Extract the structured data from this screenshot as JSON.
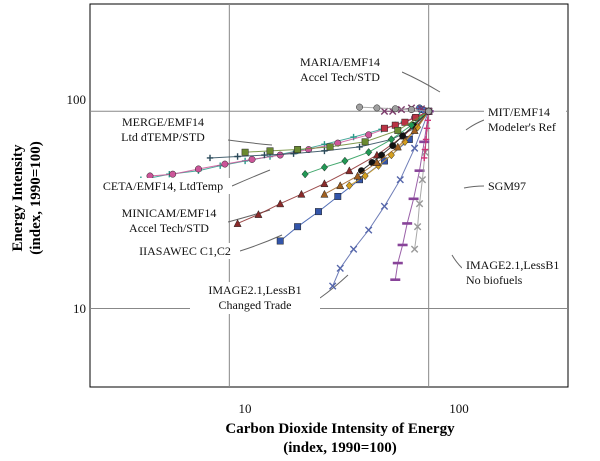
{
  "chart_data": {
    "type": "scatter",
    "xlabel": "Carbon Dioxide Intensity of Energy",
    "xlabel_sub": "(index, 1990=100)",
    "ylabel": "Energy Intensity",
    "ylabel_sub": "(index, 1990=100)",
    "x_scale": "log",
    "y_scale": "log",
    "xlim": [
      2,
      500
    ],
    "ylim": [
      4,
      350
    ],
    "x_ticks": [
      10,
      100
    ],
    "y_ticks": [
      10,
      100
    ],
    "x_tick_labels": [
      "10",
      "100"
    ],
    "y_tick_labels": [
      "10",
      "100"
    ],
    "grid": true,
    "annotations": [
      {
        "lines": [
          "MARIA/EMF14",
          "Accel Tech/STD"
        ]
      },
      {
        "lines": [
          "MERGE/EMF14",
          "Ltd dTEMP/STD"
        ]
      },
      {
        "lines": [
          "MIT/EMF14",
          "Modeler's Ref"
        ]
      },
      {
        "lines": [
          "CETA/EMF14, LtdTemp"
        ]
      },
      {
        "lines": [
          "SGM97"
        ]
      },
      {
        "lines": [
          "MINICAM/EMF14",
          "Accel Tech/STD"
        ]
      },
      {
        "lines": [
          "IIASAWEC C1,C2"
        ]
      },
      {
        "lines": [
          "IMAGE2.1,LessB1",
          "Changed Trade"
        ]
      },
      {
        "lines": [
          "IMAGE2.1,LessB1",
          "No biofuels"
        ]
      }
    ],
    "series": [
      {
        "color": "#2a9a8a",
        "marker": "plus",
        "values": [
          [
            2.7,
            44
          ],
          [
            3.6,
            45
          ],
          [
            5,
            48
          ],
          [
            7,
            50
          ],
          [
            9,
            53
          ],
          [
            12,
            56
          ],
          [
            16,
            59
          ],
          [
            22,
            63
          ],
          [
            30,
            68
          ],
          [
            42,
            74
          ],
          [
            58,
            81
          ],
          [
            75,
            88
          ],
          [
            90,
            95
          ],
          [
            100,
            100
          ]
        ]
      },
      {
        "color": "#cc5599",
        "marker": "circle",
        "values": [
          [
            4,
            47
          ],
          [
            5.2,
            48
          ],
          [
            7,
            51
          ],
          [
            9.5,
            54
          ],
          [
            13,
            57
          ],
          [
            18,
            60
          ],
          [
            25,
            64
          ],
          [
            35,
            69
          ],
          [
            50,
            76
          ],
          [
            68,
            85
          ],
          [
            85,
            93
          ],
          [
            100,
            100
          ]
        ]
      },
      {
        "color": "#2a4a5a",
        "marker": "plus",
        "values": [
          [
            8,
            58
          ],
          [
            11,
            59
          ],
          [
            15,
            60
          ],
          [
            21,
            61
          ],
          [
            30,
            63
          ],
          [
            45,
            66
          ],
          [
            65,
            72
          ],
          [
            85,
            82
          ],
          [
            100,
            100
          ]
        ]
      },
      {
        "color": "#8a2a2a",
        "marker": "triangle",
        "values": [
          [
            11,
            27
          ],
          [
            14,
            30
          ],
          [
            18,
            34
          ],
          [
            23,
            38
          ],
          [
            30,
            43
          ],
          [
            40,
            50
          ],
          [
            55,
            60
          ],
          [
            75,
            75
          ],
          [
            100,
            100
          ]
        ]
      },
      {
        "color": "#3355aa",
        "marker": "square",
        "values": [
          [
            18,
            22
          ],
          [
            22,
            26
          ],
          [
            28,
            31
          ],
          [
            35,
            37
          ],
          [
            45,
            45
          ],
          [
            60,
            56
          ],
          [
            80,
            72
          ],
          [
            100,
            100
          ]
        ]
      },
      {
        "color": "#5566aa",
        "marker": "x",
        "values": [
          [
            33,
            13
          ],
          [
            36,
            16
          ],
          [
            42,
            20
          ],
          [
            50,
            25
          ],
          [
            60,
            33
          ],
          [
            72,
            45
          ],
          [
            85,
            65
          ],
          [
            100,
            100
          ]
        ]
      },
      {
        "color": "#884499",
        "marker": "bar",
        "values": [
          [
            68,
            14
          ],
          [
            70,
            17
          ],
          [
            74,
            21
          ],
          [
            78,
            27
          ],
          [
            84,
            36
          ],
          [
            90,
            50
          ],
          [
            95,
            70
          ],
          [
            100,
            100
          ]
        ]
      },
      {
        "color": "#111111",
        "marker": "circle",
        "values": [
          [
            46,
            50
          ],
          [
            52,
            55
          ],
          [
            58,
            60
          ],
          [
            66,
            67
          ],
          [
            74,
            75
          ],
          [
            84,
            85
          ],
          [
            100,
            100
          ]
        ]
      },
      {
        "color": "#d4a020",
        "marker": "diamond",
        "values": [
          [
            40,
            42
          ],
          [
            48,
            47
          ],
          [
            56,
            53
          ],
          [
            65,
            60
          ],
          [
            76,
            70
          ],
          [
            88,
            83
          ],
          [
            100,
            100
          ]
        ]
      },
      {
        "color": "#4477cc",
        "marker": "circle",
        "values": [
          [
            90,
            104
          ],
          [
            92,
            102
          ],
          [
            95,
            101
          ],
          [
            100,
            100
          ]
        ]
      },
      {
        "color": "#bb3344",
        "marker": "square",
        "values": [
          [
            60,
            82
          ],
          [
            68,
            85
          ],
          [
            76,
            88
          ],
          [
            86,
            93
          ],
          [
            100,
            100
          ]
        ]
      },
      {
        "color": "#999999",
        "marker": "x",
        "values": [
          [
            85,
            20
          ],
          [
            88,
            26
          ],
          [
            90,
            34
          ],
          [
            93,
            45
          ],
          [
            96,
            62
          ],
          [
            100,
            100
          ]
        ]
      },
      {
        "color": "#a06020",
        "marker": "triangle",
        "values": [
          [
            30,
            38
          ],
          [
            36,
            42
          ],
          [
            44,
            47
          ],
          [
            55,
            55
          ],
          [
            70,
            66
          ],
          [
            85,
            80
          ],
          [
            100,
            100
          ]
        ]
      },
      {
        "color": "#229955",
        "marker": "diamond",
        "values": [
          [
            24,
            48
          ],
          [
            30,
            52
          ],
          [
            38,
            56
          ],
          [
            50,
            62
          ],
          [
            65,
            72
          ],
          [
            82,
            85
          ],
          [
            100,
            100
          ]
        ]
      },
      {
        "color": "#cc3377",
        "marker": "plus",
        "values": [
          [
            95,
            58
          ],
          [
            96,
            64
          ],
          [
            97,
            72
          ],
          [
            98,
            82
          ],
          [
            99,
            90
          ],
          [
            100,
            100
          ]
        ]
      },
      {
        "color": "#6a8a30",
        "marker": "square",
        "values": [
          [
            12,
            62
          ],
          [
            16,
            63
          ],
          [
            22,
            64
          ],
          [
            32,
            66
          ],
          [
            48,
            70
          ],
          [
            70,
            80
          ],
          [
            100,
            100
          ]
        ]
      },
      {
        "color": "#7a3a6a",
        "marker": "x",
        "values": [
          [
            60,
            100
          ],
          [
            66,
            100
          ],
          [
            73,
            102
          ],
          [
            82,
            104
          ],
          [
            92,
            103
          ],
          [
            100,
            100
          ]
        ]
      },
      {
        "color": "#a0a0a0",
        "marker": "circle",
        "values": [
          [
            45,
            105
          ],
          [
            55,
            104
          ],
          [
            68,
            103
          ],
          [
            82,
            102
          ],
          [
            100,
            100
          ]
        ]
      }
    ]
  }
}
